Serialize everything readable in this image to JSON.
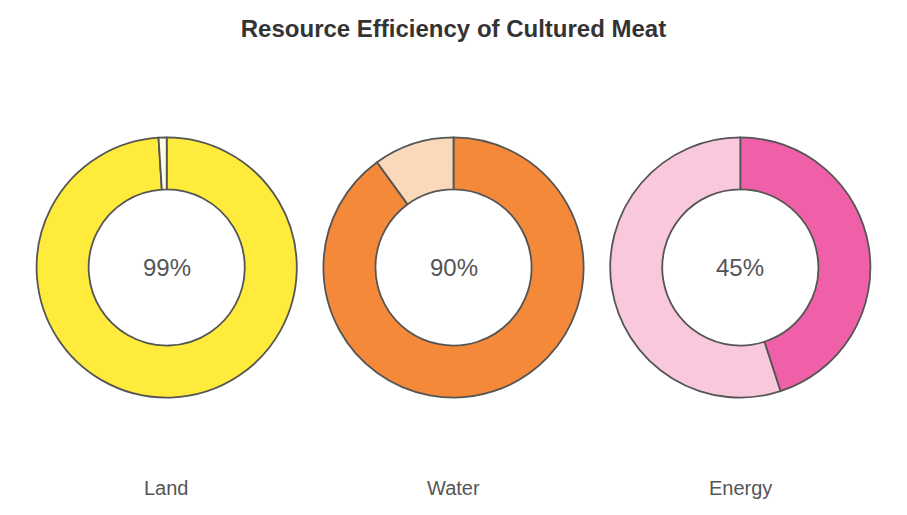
{
  "title": "Resource Efficiency of Cultured Meat",
  "chart_data": [
    {
      "type": "pie",
      "title": "Land",
      "values": [
        99,
        1
      ],
      "colors": [
        "#FFEB3B",
        "#FFFDE7"
      ],
      "annotation": "99%"
    },
    {
      "type": "pie",
      "title": "Water",
      "values": [
        90,
        10
      ],
      "colors": [
        "#F5893A",
        "#FAD9BB"
      ],
      "annotation": "90%"
    },
    {
      "type": "pie",
      "title": "Energy",
      "values": [
        45,
        55
      ],
      "colors": [
        "#F060A8",
        "#F9C8DC"
      ],
      "annotation": "45%"
    }
  ]
}
